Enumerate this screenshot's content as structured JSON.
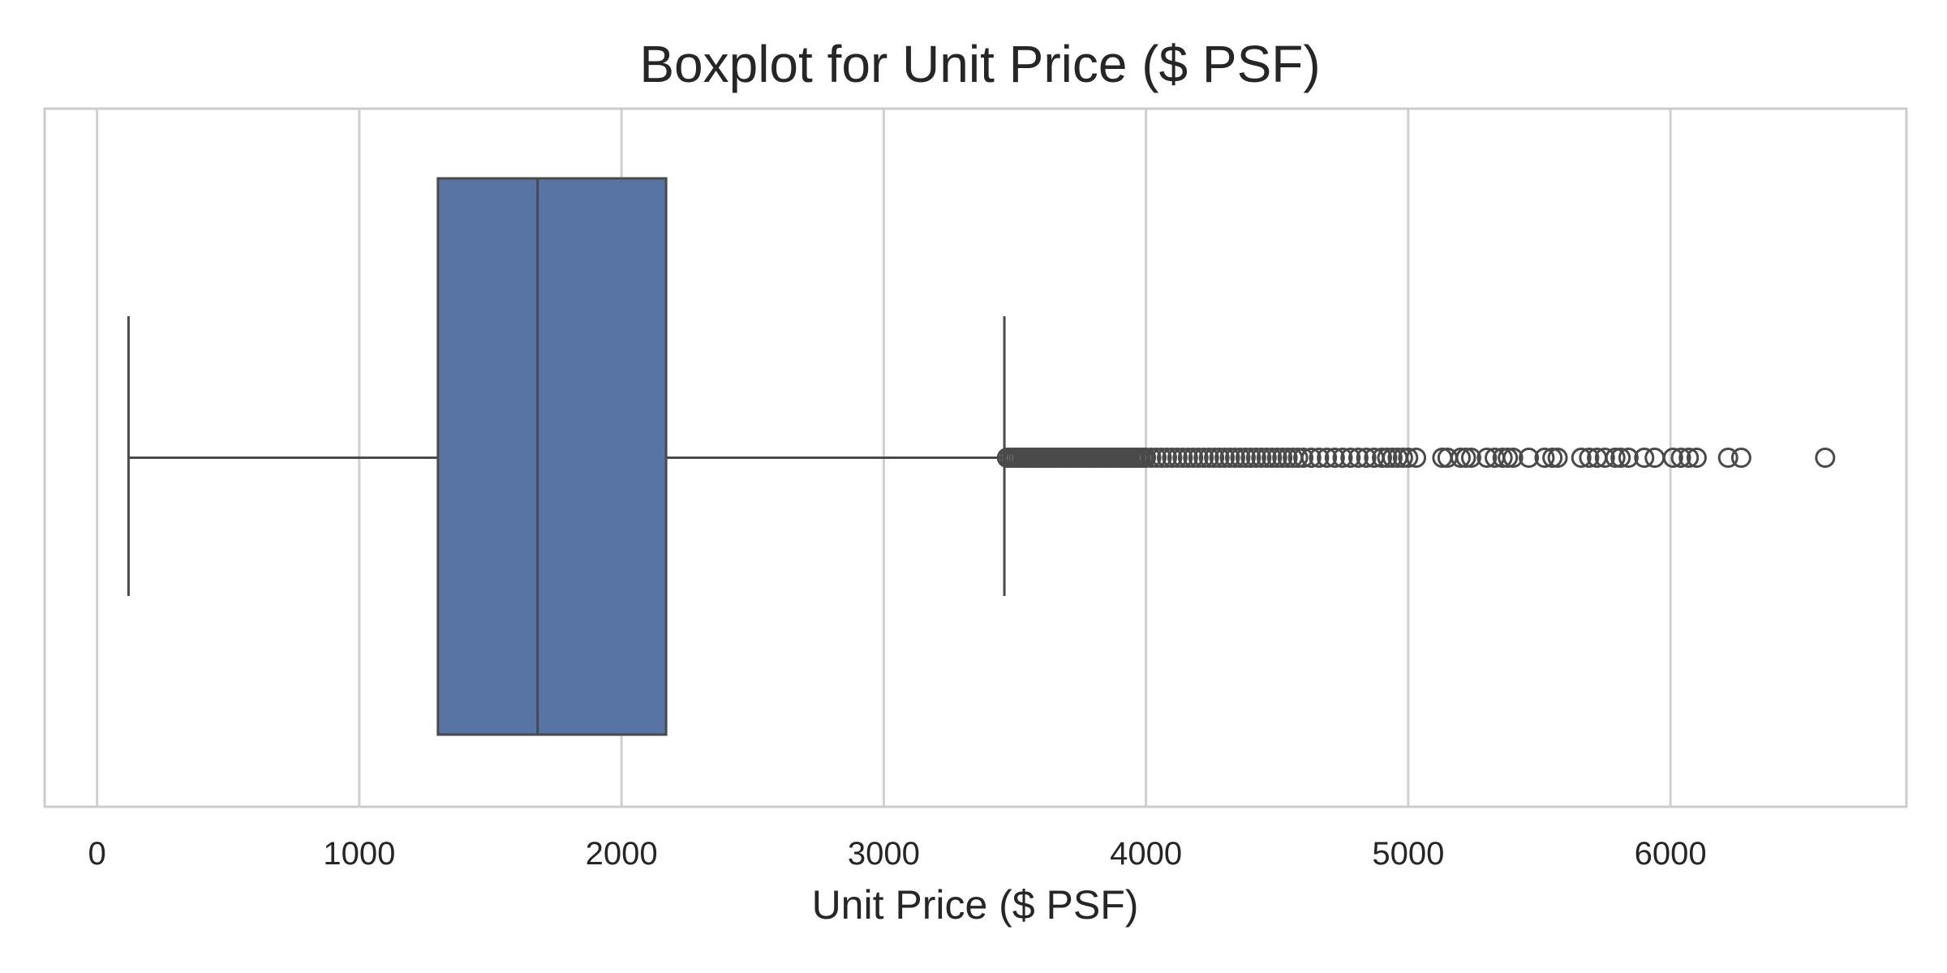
{
  "chart_data": {
    "type": "boxplot",
    "title": "Boxplot for Unit Price ($ PSF)",
    "xlabel": "Unit Price ($ PSF)",
    "ylabel": "",
    "xlim": [
      -200,
      6900
    ],
    "xticks": [
      0,
      1000,
      2000,
      3000,
      4000,
      5000,
      6000
    ],
    "grid": true,
    "colors": {
      "box_fill": "#5874a4",
      "line": "#4a4a4a",
      "grid": "#d0d0d0",
      "frame": "#cccccc"
    },
    "box": {
      "whisker_low": 120,
      "q1": 1300,
      "median": 1680,
      "q3": 2170,
      "whisker_high": 3460
    },
    "outliers": [
      3470,
      3480,
      3490,
      3500,
      3510,
      3520,
      3530,
      3540,
      3550,
      3560,
      3570,
      3580,
      3590,
      3600,
      3610,
      3620,
      3630,
      3640,
      3650,
      3660,
      3670,
      3680,
      3690,
      3700,
      3710,
      3720,
      3730,
      3740,
      3750,
      3760,
      3770,
      3780,
      3790,
      3800,
      3810,
      3820,
      3830,
      3840,
      3850,
      3860,
      3870,
      3880,
      3890,
      3900,
      3910,
      3920,
      3930,
      3940,
      3950,
      3960,
      3970,
      3980,
      3990,
      4000,
      4020,
      4040,
      4060,
      4080,
      4100,
      4120,
      4140,
      4160,
      4180,
      4200,
      4220,
      4240,
      4260,
      4280,
      4300,
      4320,
      4340,
      4360,
      4380,
      4400,
      4420,
      4440,
      4460,
      4480,
      4500,
      4520,
      4540,
      4560,
      4580,
      4600,
      4630,
      4660,
      4690,
      4720,
      4750,
      4780,
      4810,
      4840,
      4870,
      4900,
      4920,
      4940,
      4960,
      4980,
      5000,
      5030,
      5130,
      5150,
      5200,
      5220,
      5240,
      5300,
      5330,
      5360,
      5380,
      5400,
      5460,
      5520,
      5550,
      5570,
      5660,
      5690,
      5720,
      5750,
      5790,
      5810,
      5840,
      5900,
      5940,
      6010,
      6040,
      6070,
      6100,
      6220,
      6270,
      6590
    ]
  }
}
